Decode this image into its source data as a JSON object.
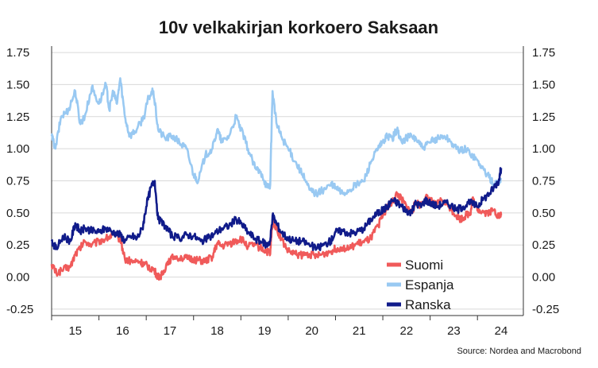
{
  "chart_data": {
    "type": "line",
    "title": "10v velkakirjan korkoero Saksaan",
    "source": "Source: Nordea and Macrobond",
    "y_ticks": [
      "1.75",
      "1.50",
      "1.25",
      "1.00",
      "0.75",
      "0.50",
      "0.25",
      "0.00",
      "-0.25"
    ],
    "y_tick_values": [
      1.75,
      1.5,
      1.25,
      1.0,
      0.75,
      0.5,
      0.25,
      0.0,
      -0.25
    ],
    "ylim": [
      -0.3,
      1.8
    ],
    "x_ticks": [
      "15",
      "16",
      "17",
      "18",
      "19",
      "20",
      "21",
      "22",
      "23",
      "24"
    ],
    "x_tick_values": [
      2015.5,
      2016.5,
      2017.5,
      2018.5,
      2019.5,
      2020.5,
      2021.5,
      2022.5,
      2023.5,
      2024.5
    ],
    "xlim": [
      2015.0,
      2024.97
    ],
    "grid": true,
    "legend_position": "bottom-right",
    "series": [
      {
        "name": "Suomi",
        "color": "#f05a5a",
        "points": [
          [
            2015.0,
            0.1
          ],
          [
            2015.1,
            0.03
          ],
          [
            2015.25,
            0.06
          ],
          [
            2015.4,
            0.08
          ],
          [
            2015.5,
            0.18
          ],
          [
            2015.6,
            0.22
          ],
          [
            2015.7,
            0.28
          ],
          [
            2015.85,
            0.25
          ],
          [
            2016.0,
            0.28
          ],
          [
            2016.15,
            0.3
          ],
          [
            2016.3,
            0.33
          ],
          [
            2016.45,
            0.3
          ],
          [
            2016.55,
            0.14
          ],
          [
            2016.7,
            0.12
          ],
          [
            2016.85,
            0.12
          ],
          [
            2016.95,
            0.1
          ],
          [
            2017.05,
            0.08
          ],
          [
            2017.15,
            0.06
          ],
          [
            2017.25,
            0.0
          ],
          [
            2017.35,
            0.02
          ],
          [
            2017.45,
            0.12
          ],
          [
            2017.6,
            0.16
          ],
          [
            2017.75,
            0.15
          ],
          [
            2017.9,
            0.14
          ],
          [
            2018.0,
            0.14
          ],
          [
            2018.1,
            0.13
          ],
          [
            2018.25,
            0.12
          ],
          [
            2018.4,
            0.16
          ],
          [
            2018.5,
            0.26
          ],
          [
            2018.6,
            0.24
          ],
          [
            2018.75,
            0.26
          ],
          [
            2018.9,
            0.28
          ],
          [
            2019.0,
            0.3
          ],
          [
            2019.15,
            0.24
          ],
          [
            2019.3,
            0.25
          ],
          [
            2019.45,
            0.22
          ],
          [
            2019.55,
            0.2
          ],
          [
            2019.62,
            0.18
          ],
          [
            2019.67,
            0.45
          ],
          [
            2019.75,
            0.38
          ],
          [
            2019.85,
            0.3
          ],
          [
            2020.0,
            0.2
          ],
          [
            2020.15,
            0.18
          ],
          [
            2020.3,
            0.17
          ],
          [
            2020.45,
            0.18
          ],
          [
            2020.6,
            0.16
          ],
          [
            2020.75,
            0.18
          ],
          [
            2020.9,
            0.2
          ],
          [
            2021.0,
            0.22
          ],
          [
            2021.15,
            0.23
          ],
          [
            2021.3,
            0.22
          ],
          [
            2021.45,
            0.26
          ],
          [
            2021.6,
            0.27
          ],
          [
            2021.75,
            0.3
          ],
          [
            2021.9,
            0.4
          ],
          [
            2022.0,
            0.48
          ],
          [
            2022.1,
            0.55
          ],
          [
            2022.2,
            0.58
          ],
          [
            2022.3,
            0.65
          ],
          [
            2022.4,
            0.6
          ],
          [
            2022.5,
            0.55
          ],
          [
            2022.6,
            0.5
          ],
          [
            2022.7,
            0.58
          ],
          [
            2022.8,
            0.56
          ],
          [
            2022.9,
            0.62
          ],
          [
            2023.0,
            0.6
          ],
          [
            2023.1,
            0.56
          ],
          [
            2023.25,
            0.6
          ],
          [
            2023.4,
            0.55
          ],
          [
            2023.55,
            0.48
          ],
          [
            2023.65,
            0.45
          ],
          [
            2023.75,
            0.48
          ],
          [
            2023.85,
            0.5
          ],
          [
            2023.9,
            0.62
          ],
          [
            2023.95,
            0.55
          ],
          [
            2024.05,
            0.52
          ],
          [
            2024.2,
            0.5
          ],
          [
            2024.35,
            0.52
          ],
          [
            2024.45,
            0.47
          ],
          [
            2024.5,
            0.48
          ]
        ]
      },
      {
        "name": "Espanja",
        "color": "#99c9f2",
        "points": [
          [
            2015.0,
            1.1
          ],
          [
            2015.08,
            1.0
          ],
          [
            2015.2,
            1.25
          ],
          [
            2015.35,
            1.3
          ],
          [
            2015.5,
            1.45
          ],
          [
            2015.6,
            1.2
          ],
          [
            2015.7,
            1.25
          ],
          [
            2015.85,
            1.48
          ],
          [
            2016.0,
            1.35
          ],
          [
            2016.15,
            1.5
          ],
          [
            2016.22,
            1.3
          ],
          [
            2016.3,
            1.45
          ],
          [
            2016.38,
            1.35
          ],
          [
            2016.45,
            1.55
          ],
          [
            2016.55,
            1.25
          ],
          [
            2016.65,
            1.1
          ],
          [
            2016.8,
            1.15
          ],
          [
            2016.95,
            1.25
          ],
          [
            2017.05,
            1.4
          ],
          [
            2017.15,
            1.45
          ],
          [
            2017.25,
            1.15
          ],
          [
            2017.4,
            1.08
          ],
          [
            2017.55,
            1.1
          ],
          [
            2017.7,
            1.05
          ],
          [
            2017.85,
            1.0
          ],
          [
            2018.0,
            0.8
          ],
          [
            2018.1,
            0.75
          ],
          [
            2018.25,
            0.95
          ],
          [
            2018.4,
            1.0
          ],
          [
            2018.5,
            1.15
          ],
          [
            2018.6,
            1.05
          ],
          [
            2018.75,
            1.1
          ],
          [
            2018.9,
            1.25
          ],
          [
            2019.0,
            1.15
          ],
          [
            2019.15,
            1.0
          ],
          [
            2019.3,
            0.85
          ],
          [
            2019.45,
            0.8
          ],
          [
            2019.55,
            0.7
          ],
          [
            2019.62,
            0.72
          ],
          [
            2019.67,
            1.45
          ],
          [
            2019.75,
            1.2
          ],
          [
            2019.85,
            1.1
          ],
          [
            2020.0,
            1.0
          ],
          [
            2020.15,
            0.9
          ],
          [
            2020.3,
            0.8
          ],
          [
            2020.45,
            0.68
          ],
          [
            2020.6,
            0.65
          ],
          [
            2020.75,
            0.68
          ],
          [
            2020.9,
            0.72
          ],
          [
            2021.0,
            0.7
          ],
          [
            2021.15,
            0.65
          ],
          [
            2021.3,
            0.68
          ],
          [
            2021.45,
            0.72
          ],
          [
            2021.6,
            0.75
          ],
          [
            2021.75,
            0.9
          ],
          [
            2021.9,
            1.0
          ],
          [
            2022.0,
            1.05
          ],
          [
            2022.1,
            1.1
          ],
          [
            2022.2,
            1.08
          ],
          [
            2022.3,
            1.15
          ],
          [
            2022.4,
            1.05
          ],
          [
            2022.55,
            1.1
          ],
          [
            2022.7,
            1.08
          ],
          [
            2022.85,
            1.0
          ],
          [
            2023.0,
            1.05
          ],
          [
            2023.15,
            1.08
          ],
          [
            2023.3,
            1.1
          ],
          [
            2023.45,
            1.05
          ],
          [
            2023.6,
            0.98
          ],
          [
            2023.75,
            1.0
          ],
          [
            2023.9,
            0.95
          ],
          [
            2024.05,
            0.88
          ],
          [
            2024.2,
            0.8
          ],
          [
            2024.35,
            0.72
          ],
          [
            2024.45,
            0.75
          ],
          [
            2024.5,
            0.76
          ]
        ]
      },
      {
        "name": "Ranska",
        "color": "#101b8a",
        "points": [
          [
            2015.0,
            0.28
          ],
          [
            2015.1,
            0.22
          ],
          [
            2015.25,
            0.32
          ],
          [
            2015.4,
            0.28
          ],
          [
            2015.5,
            0.42
          ],
          [
            2015.6,
            0.35
          ],
          [
            2015.7,
            0.38
          ],
          [
            2015.85,
            0.36
          ],
          [
            2016.0,
            0.35
          ],
          [
            2016.15,
            0.38
          ],
          [
            2016.3,
            0.35
          ],
          [
            2016.45,
            0.33
          ],
          [
            2016.55,
            0.28
          ],
          [
            2016.7,
            0.32
          ],
          [
            2016.8,
            0.3
          ],
          [
            2016.92,
            0.38
          ],
          [
            2017.0,
            0.55
          ],
          [
            2017.1,
            0.7
          ],
          [
            2017.18,
            0.75
          ],
          [
            2017.25,
            0.45
          ],
          [
            2017.4,
            0.4
          ],
          [
            2017.55,
            0.32
          ],
          [
            2017.7,
            0.3
          ],
          [
            2017.85,
            0.33
          ],
          [
            2018.0,
            0.32
          ],
          [
            2018.15,
            0.28
          ],
          [
            2018.3,
            0.3
          ],
          [
            2018.45,
            0.34
          ],
          [
            2018.6,
            0.38
          ],
          [
            2018.75,
            0.4
          ],
          [
            2018.9,
            0.45
          ],
          [
            2019.0,
            0.42
          ],
          [
            2019.15,
            0.35
          ],
          [
            2019.3,
            0.3
          ],
          [
            2019.45,
            0.27
          ],
          [
            2019.55,
            0.25
          ],
          [
            2019.62,
            0.28
          ],
          [
            2019.67,
            0.48
          ],
          [
            2019.75,
            0.42
          ],
          [
            2019.85,
            0.35
          ],
          [
            2020.0,
            0.3
          ],
          [
            2020.15,
            0.28
          ],
          [
            2020.3,
            0.28
          ],
          [
            2020.45,
            0.25
          ],
          [
            2020.6,
            0.22
          ],
          [
            2020.75,
            0.25
          ],
          [
            2020.9,
            0.28
          ],
          [
            2021.0,
            0.35
          ],
          [
            2021.15,
            0.36
          ],
          [
            2021.3,
            0.34
          ],
          [
            2021.45,
            0.35
          ],
          [
            2021.6,
            0.38
          ],
          [
            2021.75,
            0.45
          ],
          [
            2021.9,
            0.5
          ],
          [
            2022.0,
            0.52
          ],
          [
            2022.1,
            0.55
          ],
          [
            2022.2,
            0.6
          ],
          [
            2022.3,
            0.58
          ],
          [
            2022.4,
            0.55
          ],
          [
            2022.5,
            0.52
          ],
          [
            2022.6,
            0.5
          ],
          [
            2022.7,
            0.58
          ],
          [
            2022.8,
            0.55
          ],
          [
            2022.9,
            0.6
          ],
          [
            2023.0,
            0.58
          ],
          [
            2023.15,
            0.55
          ],
          [
            2023.3,
            0.58
          ],
          [
            2023.45,
            0.56
          ],
          [
            2023.55,
            0.52
          ],
          [
            2023.7,
            0.55
          ],
          [
            2023.85,
            0.58
          ],
          [
            2024.0,
            0.55
          ],
          [
            2024.1,
            0.6
          ],
          [
            2024.25,
            0.65
          ],
          [
            2024.35,
            0.7
          ],
          [
            2024.45,
            0.75
          ],
          [
            2024.5,
            0.85
          ]
        ]
      }
    ]
  }
}
